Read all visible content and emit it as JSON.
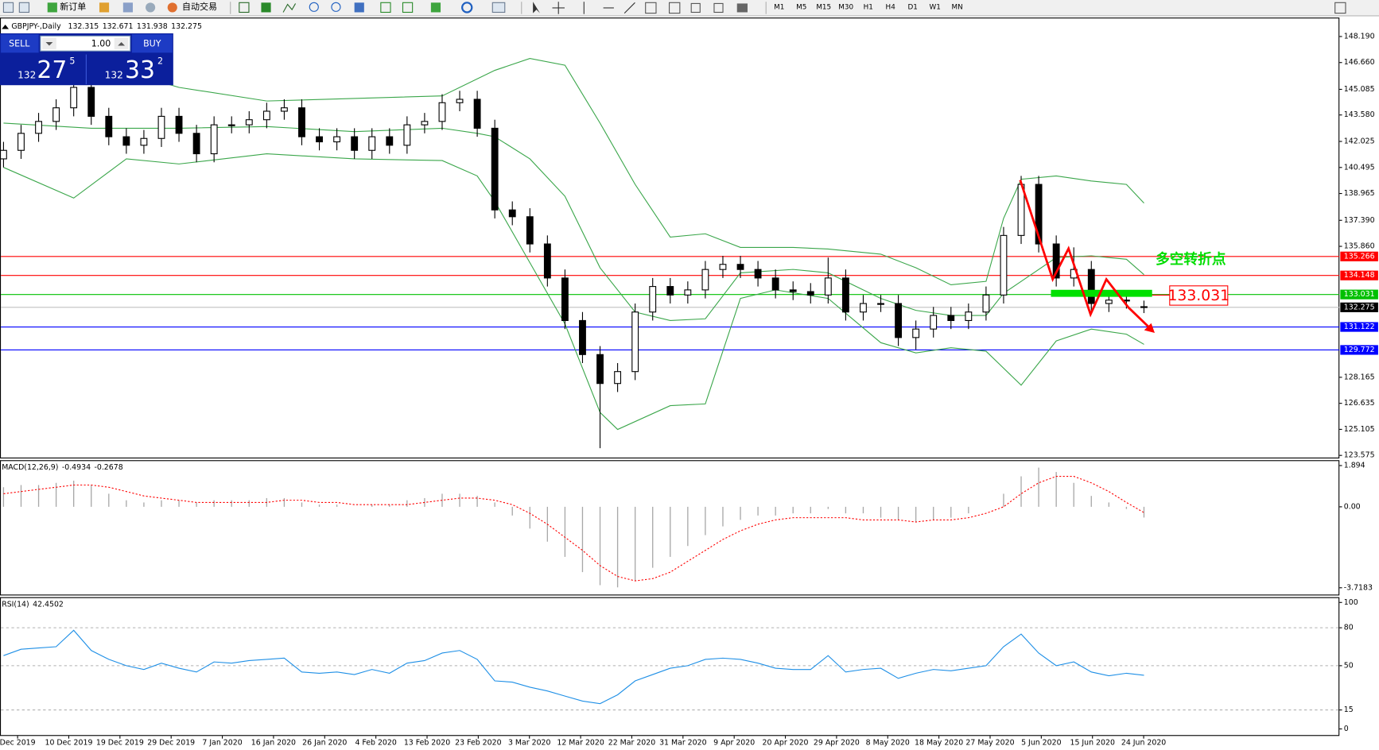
{
  "toolbar": {
    "new_order": "新订单",
    "auto_trade": "自动交易",
    "timeframes": [
      "M1",
      "M5",
      "M15",
      "M30",
      "H1",
      "H4",
      "D1",
      "W1",
      "MN"
    ]
  },
  "trade_panel": {
    "sell": "SELL",
    "lot": "1.00",
    "buy": "BUY",
    "bid": {
      "big": "132",
      "main": "27",
      "small": "5"
    },
    "ask": {
      "big": "132",
      "main": "33",
      "small": "2"
    }
  },
  "chart_data": [
    {
      "type": "candlestick",
      "title": "GBPJPY-,Daily",
      "color": "#000000",
      "open": [
        141.0,
        141.5,
        142.5,
        143.2,
        144,
        145.2,
        143.5,
        142.3,
        141.8,
        142.2,
        143.5,
        142.5,
        141.3,
        143,
        143,
        143.3,
        143.8,
        144,
        142.3,
        142,
        142.3,
        141.5,
        142.3,
        141.8,
        143,
        143.2,
        144.3,
        144.5,
        142.8,
        138,
        137.6,
        136,
        134,
        131.5,
        129.5,
        127.8,
        128.5,
        132,
        133.5,
        133,
        133.3,
        134.5,
        134.8,
        134.5,
        134,
        133.3,
        133.2,
        133,
        134,
        132,
        132.5,
        132.5,
        130.5,
        131,
        131.8,
        131.5,
        132,
        133,
        136.5,
        139.5,
        136,
        134,
        134.5,
        132.5,
        132.7,
        132.315
      ],
      "high": [
        142.0,
        143.0,
        143.7,
        144.5,
        147.0,
        145.7,
        144.0,
        142.8,
        142.7,
        144.0,
        144.0,
        143.0,
        143.5,
        143.5,
        143.8,
        144.3,
        144.5,
        144.5,
        142.8,
        142.8,
        142.8,
        142.8,
        142.8,
        143.5,
        143.7,
        144.8,
        145.0,
        145.0,
        143.3,
        138.5,
        138.1,
        136.5,
        134.5,
        132.0,
        130.0,
        129.0,
        132.5,
        134.0,
        134.0,
        133.8,
        135.0,
        135.3,
        135.3,
        135.0,
        134.5,
        133.8,
        133.7,
        135.2,
        134.5,
        133.0,
        133.0,
        133.0,
        131.5,
        132.3,
        132.3,
        132.5,
        133.5,
        137.0,
        140.0,
        140.0,
        136.5,
        135.8,
        135.0,
        133.2,
        133.2,
        132.671
      ],
      "low": [
        140.5,
        141.0,
        142.0,
        142.7,
        143.5,
        143.0,
        141.8,
        141.3,
        141.3,
        141.7,
        142.0,
        140.8,
        140.8,
        142.5,
        142.5,
        142.8,
        143.3,
        141.8,
        141.5,
        141.5,
        141.0,
        141.0,
        141.3,
        141.3,
        142.5,
        142.7,
        143.8,
        142.3,
        137.5,
        137.1,
        135.5,
        133.5,
        131.0,
        129.0,
        124.0,
        127.3,
        128.0,
        131.5,
        132.5,
        132.5,
        132.8,
        134.0,
        134.0,
        133.5,
        132.8,
        132.7,
        132.5,
        132.5,
        131.5,
        131.5,
        132.0,
        130.0,
        129.8,
        130.5,
        131.0,
        131.0,
        131.5,
        132.5,
        136.0,
        135.5,
        133.5,
        133.5,
        132.0,
        132.0,
        132.2,
        131.938
      ],
      "close": [
        141.5,
        142.5,
        143.2,
        144,
        145.2,
        143.5,
        142.3,
        141.8,
        142.2,
        143.5,
        142.5,
        141.3,
        143,
        143,
        143.3,
        143.8,
        144,
        142.3,
        142,
        142.3,
        141.5,
        142.3,
        141.8,
        143,
        143.2,
        144.3,
        144.5,
        142.8,
        138,
        137.6,
        136,
        134,
        131.5,
        129.5,
        127.8,
        128.5,
        132,
        133.5,
        133,
        133.3,
        134.5,
        134.8,
        134.5,
        134,
        133.3,
        133.2,
        133,
        134,
        132,
        132.5,
        132.5,
        130.5,
        131,
        131.8,
        131.5,
        132,
        133,
        136.5,
        139.5,
        136,
        134,
        134.5,
        132.5,
        132.7,
        132.7,
        132.275
      ],
      "bands": [
        {
          "color": "#3aa64a",
          "x": [
            0,
            5,
            10,
            15,
            25,
            28,
            30,
            32,
            34,
            36,
            38,
            40,
            42,
            45,
            47,
            50,
            52,
            54,
            56,
            57,
            58,
            60,
            62,
            64,
            65
          ],
          "values": [
            145.7,
            146.7,
            145.2,
            144.4,
            144.7,
            146.2,
            146.9,
            146.5,
            143.1,
            139.5,
            136.4,
            136.6,
            135.8,
            135.8,
            135.7,
            135.4,
            134.6,
            133.6,
            133.8,
            137.5,
            139.8,
            140.0,
            139.7,
            139.5,
            138.4
          ]
        },
        {
          "color": "#3aa64a",
          "x": [
            0,
            5,
            10,
            15,
            20,
            25,
            27,
            28,
            30,
            32,
            34,
            36,
            38,
            40,
            42,
            45,
            47,
            50,
            52,
            54,
            56,
            57,
            58,
            60,
            62,
            64,
            65
          ],
          "values": [
            143.1,
            142.8,
            142.8,
            142.9,
            142.6,
            142.8,
            142.5,
            142.3,
            141.0,
            138.8,
            134.6,
            132.0,
            131.5,
            131.6,
            134.3,
            134.5,
            134.3,
            132.8,
            132.1,
            131.8,
            131.8,
            133.1,
            133.8,
            135.2,
            135.3,
            135.1,
            134.2
          ]
        },
        {
          "color": "#3aa64a",
          "x": [
            0,
            4,
            7,
            10,
            15,
            20,
            25,
            27,
            28,
            30,
            32,
            34,
            35,
            38,
            40,
            41,
            42,
            44,
            47,
            50,
            52,
            54,
            56,
            57,
            58,
            60,
            62,
            64,
            65
          ],
          "values": [
            140.5,
            138.7,
            141.0,
            140.7,
            141.3,
            141.0,
            140.9,
            140.0,
            138.5,
            134.9,
            131.3,
            126.1,
            125.1,
            126.5,
            126.6,
            129.7,
            132.8,
            133.3,
            132.8,
            130.2,
            129.6,
            129.9,
            129.7,
            128.7,
            127.7,
            130.3,
            131.0,
            130.7,
            130.1
          ]
        }
      ],
      "levels": [
        {
          "value": 135.266,
          "color": "#ff0000"
        },
        {
          "value": 134.148,
          "color": "#ff0000"
        },
        {
          "value": 133.031,
          "color": "#00c000"
        },
        {
          "value": 132.275,
          "color": "#c0c0c0",
          "label_color": "#000000"
        },
        {
          "value": 131.122,
          "color": "#0000ff"
        },
        {
          "value": 129.772,
          "color": "#0000ff"
        }
      ],
      "annotation": "多空转折点",
      "ylim": [
        123.5,
        149.2
      ],
      "yticks": [
        {
          "value": 148.19,
          "label": "148.190"
        },
        {
          "value": 146.66,
          "label": "146.660"
        },
        145.085,
        {
          "value": 143.58,
          "label": "143.580"
        },
        142.025,
        140.495,
        138.965,
        {
          "value": 137.39,
          "label": "137.390"
        },
        {
          "value": 135.86,
          "label": "135.860"
        },
        128.165,
        126.635,
        125.105,
        123.575
      ],
      "xtick_labels": [
        "Dec 2019",
        "10 Dec 2019",
        "19 Dec 2019",
        "29 Dec 2019",
        "7 Jan 2020",
        "16 Jan 2020",
        "26 Jan 2020",
        "4 Feb 2020",
        "13 Feb 2020",
        "23 Feb 2020",
        "3 Mar 2020",
        "12 Mar 2020",
        "22 Mar 2020",
        "31 Mar 2020",
        "9 Apr 2020",
        "20 Apr 2020",
        "29 Apr 2020",
        "8 May 2020",
        "18 May 2020",
        "27 May 2020",
        "5 Jun 2020",
        "15 Jun 2020",
        "24 Jun 2020"
      ]
    },
    {
      "type": "macd",
      "title": "MACD(12,26,9)",
      "series": [
        {
          "color": "#a8a8a8",
          "values": [
            0.9,
            1.0,
            1.0,
            1.1,
            1.2,
            1.0,
            0.6,
            0.3,
            0.2,
            0.3,
            0.3,
            0.2,
            0.3,
            0.3,
            0.3,
            0.4,
            0.4,
            0.2,
            0.1,
            0.1,
            0.0,
            0.1,
            0.1,
            0.3,
            0.4,
            0.6,
            0.6,
            0.5,
            0.2,
            -0.4,
            -1.0,
            -1.6,
            -2.3,
            -3.0,
            -3.6,
            -3.7,
            -3.4,
            -2.8,
            -2.3,
            -1.8,
            -1.3,
            -0.9,
            -0.6,
            -0.4,
            -0.4,
            -0.3,
            -0.3,
            -0.1,
            -0.3,
            -0.3,
            -0.5,
            -0.6,
            -0.7,
            -0.6,
            -0.5,
            -0.3,
            0.0,
            0.6,
            1.4,
            1.8,
            1.6,
            1.1,
            0.5,
            0.2,
            -0.1,
            -0.4934
          ]
        },
        {
          "color": "#ff0000",
          "values": [
            0.6,
            0.7,
            0.8,
            0.9,
            1.0,
            1.0,
            0.9,
            0.7,
            0.5,
            0.4,
            0.3,
            0.2,
            0.2,
            0.2,
            0.2,
            0.2,
            0.3,
            0.3,
            0.2,
            0.2,
            0.1,
            0.1,
            0.1,
            0.1,
            0.2,
            0.3,
            0.4,
            0.4,
            0.3,
            0.1,
            -0.3,
            -0.8,
            -1.4,
            -2.0,
            -2.7,
            -3.2,
            -3.4,
            -3.3,
            -3.0,
            -2.5,
            -2.0,
            -1.5,
            -1.1,
            -0.8,
            -0.6,
            -0.5,
            -0.5,
            -0.5,
            -0.5,
            -0.6,
            -0.6,
            -0.6,
            -0.7,
            -0.6,
            -0.6,
            -0.5,
            -0.3,
            0.0,
            0.6,
            1.1,
            1.4,
            1.4,
            1.1,
            0.7,
            0.2,
            -0.2678
          ]
        }
      ],
      "ylim": [
        -3.99,
        2.02
      ],
      "yticks": [
        1.894,
        {
          "value": 0,
          "label": "0.00"
        },
        -3.7183
      ]
    },
    {
      "type": "line",
      "title": "RSI(14)",
      "grid": true,
      "series": [
        {
          "color": "#1e8fe6",
          "values": [
            58,
            63,
            64,
            65,
            78,
            62,
            55,
            50,
            47,
            52,
            48,
            45,
            53,
            52,
            54,
            55,
            56,
            45,
            44,
            45,
            43,
            47,
            44,
            52,
            54,
            60,
            62,
            55,
            38,
            37,
            33,
            30,
            26,
            22,
            20,
            27,
            38,
            43,
            48,
            50,
            55,
            56,
            55,
            52,
            48,
            47,
            47,
            58,
            45,
            47,
            48,
            40,
            44,
            47,
            46,
            48,
            50,
            65,
            75,
            60,
            50,
            53,
            45,
            42,
            44,
            42.4502
          ]
        }
      ],
      "ylim": [
        0,
        100
      ],
      "yticks": [
        100,
        80,
        50,
        15,
        0
      ]
    }
  ]
}
